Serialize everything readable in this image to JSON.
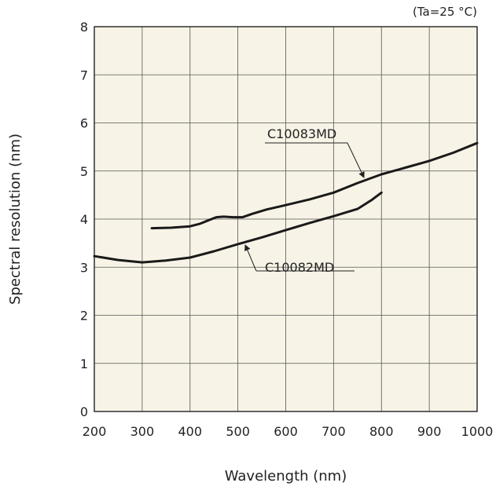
{
  "chart_data": {
    "type": "line",
    "condition_note": "(Ta=25 °C)",
    "xlabel": "Wavelength (nm)",
    "ylabel": "Spectral resolution (nm)",
    "xlim": [
      200,
      1000
    ],
    "ylim": [
      0,
      8
    ],
    "x_ticks": [
      "200",
      "300",
      "400",
      "500",
      "600",
      "700",
      "800",
      "900",
      "1000"
    ],
    "y_ticks": [
      "0",
      "1",
      "2",
      "3",
      "4",
      "5",
      "6",
      "7",
      "8"
    ],
    "grid": true,
    "plot_background": "#f7f3e6",
    "line_color": "#1a1a1a",
    "series": [
      {
        "name": "C10083MD",
        "x": [
          320,
          360,
          400,
          420,
          440,
          455,
          470,
          490,
          510,
          530,
          560,
          600,
          650,
          700,
          750,
          800,
          850,
          900,
          950,
          1000
        ],
        "y": [
          3.81,
          3.82,
          3.85,
          3.9,
          3.98,
          4.04,
          4.05,
          4.04,
          4.04,
          4.11,
          4.2,
          4.29,
          4.41,
          4.55,
          4.75,
          4.93,
          5.07,
          5.21,
          5.38,
          5.58
        ]
      },
      {
        "name": "C10082MD",
        "x": [
          200,
          250,
          300,
          350,
          400,
          450,
          500,
          550,
          600,
          650,
          700,
          750,
          780,
          800
        ],
        "y": [
          3.23,
          3.15,
          3.1,
          3.14,
          3.2,
          3.33,
          3.48,
          3.62,
          3.77,
          3.92,
          4.06,
          4.21,
          4.4,
          4.55
        ]
      }
    ]
  }
}
